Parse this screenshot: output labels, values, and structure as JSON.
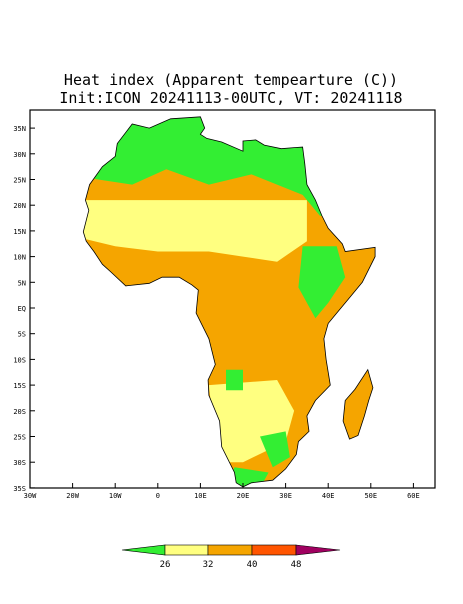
{
  "title": "Heat index (Apparent tempearture (C))",
  "subtitle": "Init:ICON 20241113-00UTC, VT: 20241118",
  "lat_labels": [
    "35N",
    "30N",
    "25N",
    "20N",
    "15N",
    "10N",
    "5N",
    "EQ",
    "5S",
    "10S",
    "15S",
    "20S",
    "25S",
    "30S",
    "35S"
  ],
  "lon_labels": [
    "30W",
    "20W",
    "10W",
    "0",
    "10E",
    "20E",
    "30E",
    "40E",
    "50E",
    "60E"
  ],
  "colorbar": {
    "labels": [
      "26",
      "32",
      "40",
      "48"
    ]
  }
}
